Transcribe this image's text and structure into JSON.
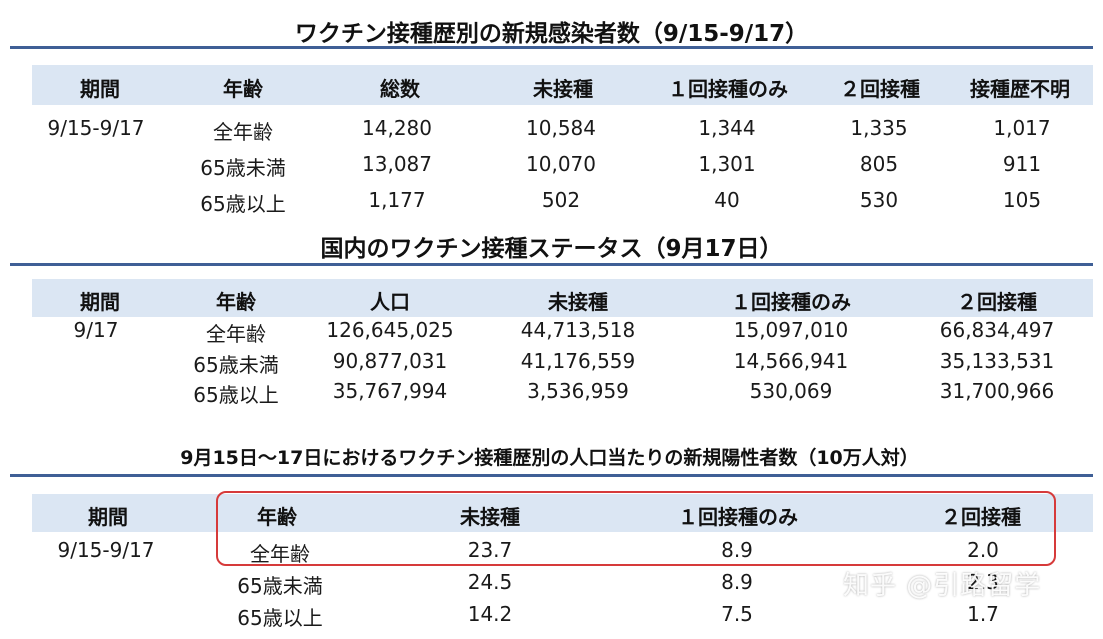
{
  "table1": {
    "title": "ワクチン接種歴別の新規感染者数（9/15-9/17）",
    "headers": [
      "期間",
      "年齢",
      "総数",
      "未接種",
      "１回接種のみ",
      "２回接種",
      "接種歴不明"
    ],
    "period": "9/15-9/17",
    "rows": [
      [
        "全年齢",
        "14,280",
        "10,584",
        "1,344",
        "1,335",
        "1,017"
      ],
      [
        "65歳未満",
        "13,087",
        "10,070",
        "1,301",
        "805",
        "911"
      ],
      [
        "65歳以上",
        "1,177",
        "502",
        "40",
        "530",
        "105"
      ]
    ]
  },
  "table2": {
    "title": "国内のワクチン接種ステータス（9月17日）",
    "headers": [
      "期間",
      "年齢",
      "人口",
      "未接種",
      "１回接種のみ",
      "２回接種"
    ],
    "period": "9/17",
    "rows": [
      [
        "全年齢",
        "126,645,025",
        "44,713,518",
        "15,097,010",
        "66,834,497"
      ],
      [
        "65歳未満",
        "90,877,031",
        "41,176,559",
        "14,566,941",
        "35,133,531"
      ],
      [
        "65歳以上",
        "35,767,994",
        "3,536,959",
        "530,069",
        "31,700,966"
      ]
    ]
  },
  "table3": {
    "title": "9月15日～17日におけるワクチン接種歴別の人口当たりの新規陽性者数（10万人対）",
    "headers": [
      "期間",
      "年齢",
      "未接種",
      "１回接種のみ",
      "２回接種"
    ],
    "period": "9/15-9/17",
    "rows": [
      [
        "全年齢",
        "23.7",
        "8.9",
        "2.0"
      ],
      [
        "65歳未満",
        "24.5",
        "8.9",
        "2.3"
      ],
      [
        "65歳以上",
        "14.2",
        "7.5",
        "1.7"
      ]
    ]
  },
  "highlight_color": "#d63a3a",
  "accent_color": "#3f5f96",
  "header_band_color": "#dbe6f3",
  "watermark": "知乎 @引路留学"
}
